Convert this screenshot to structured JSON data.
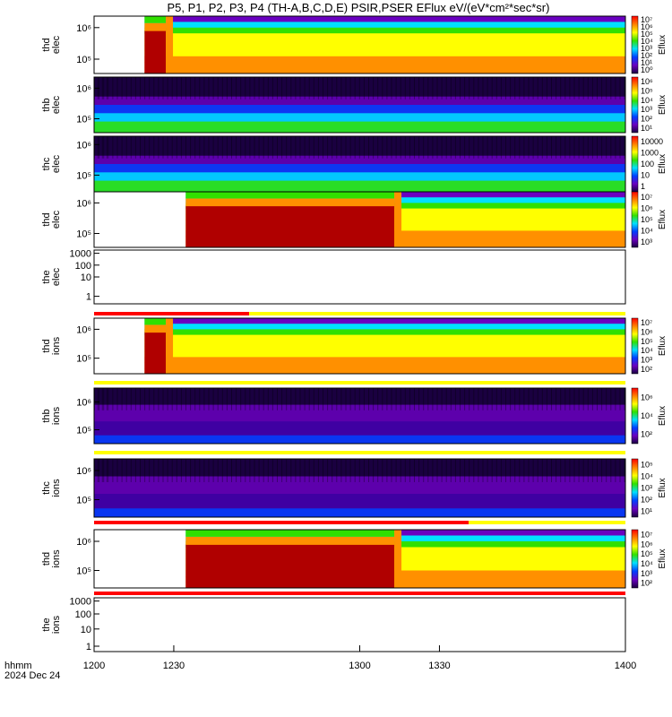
{
  "title": "P5, P1, P2, P3, P4 (TH-A,B,C,D,E) PSIR,PSER EFlux eV/(eV*cm²*sec*sr)",
  "footer": {
    "hhmm": "hhmm",
    "date": "2024 Dec 24"
  },
  "chart_data": {
    "type": "heatmap",
    "x": {
      "label": "hhmm",
      "date": "2024 Dec 24",
      "ticks": [
        "1200",
        "1230",
        "1300",
        "1330",
        "1400"
      ]
    },
    "colorbar_label": "Eflux",
    "panels": [
      {
        "label": [
          "thd",
          "elec"
        ],
        "probe": "thd",
        "species": "elec",
        "kind": "spec",
        "yticks": [
          [
            "10⁶",
            0.2
          ],
          [
            "10⁵",
            0.75
          ]
        ],
        "cticks": [
          "10⁷",
          "10⁶",
          "10⁵",
          "10⁴",
          "10³",
          "10²",
          "10¹",
          "10⁰"
        ]
      },
      {
        "label": [
          "thb",
          "elec"
        ],
        "probe": "thb",
        "species": "elec",
        "kind": "noise",
        "yticks": [
          [
            "10⁶",
            0.2
          ],
          [
            "10⁵",
            0.75
          ]
        ],
        "cticks": [
          "10⁶",
          "10⁵",
          "10⁴",
          "10³",
          "10²",
          "10¹"
        ]
      },
      {
        "label": [
          "thc",
          "elec"
        ],
        "probe": "thc",
        "species": "elec",
        "kind": "noise",
        "yticks": [
          [
            "10⁶",
            0.15
          ],
          [
            "10⁵",
            0.7
          ]
        ],
        "cticks": [
          "10000",
          "1000",
          "100",
          "10",
          "1"
        ]
      },
      {
        "label": [
          "thd",
          "elec"
        ],
        "probe": "thd",
        "species": "elec",
        "kind": "spec",
        "yticks": [
          [
            "10⁶",
            0.2
          ],
          [
            "10⁵",
            0.75
          ]
        ],
        "cticks": [
          "10⁷",
          "10⁶",
          "10⁵",
          "10⁴",
          "10³"
        ]
      },
      {
        "label": [
          "the",
          "elec"
        ],
        "probe": "the",
        "species": "elec",
        "kind": "empty",
        "yticks": [
          [
            "1000",
            0.06
          ],
          [
            "100",
            0.28
          ],
          [
            "10",
            0.5
          ],
          [
            "1",
            0.86
          ]
        ],
        "cticks": []
      },
      {
        "label": [
          "thd",
          "ions"
        ],
        "probe": "thd",
        "species": "ions",
        "kind": "spec",
        "yticks": [
          [
            "10⁶",
            0.2
          ],
          [
            "10⁵",
            0.72
          ]
        ],
        "cticks": [
          "10⁷",
          "10⁶",
          "10⁵",
          "10⁴",
          "10³",
          "10²"
        ]
      },
      {
        "label": [
          "thb",
          "ions"
        ],
        "probe": "thb",
        "species": "ions",
        "kind": "noise",
        "yticks": [
          [
            "10⁶",
            0.25
          ],
          [
            "10⁵",
            0.75
          ]
        ],
        "cticks": [
          "10⁶",
          "10⁴",
          "10²"
        ]
      },
      {
        "label": [
          "thc",
          "ions"
        ],
        "probe": "thc",
        "species": "ions",
        "kind": "noise",
        "yticks": [
          [
            "10⁶",
            0.2
          ],
          [
            "10⁵",
            0.7
          ]
        ],
        "cticks": [
          "10⁵",
          "10⁴",
          "10³",
          "10²",
          "10¹"
        ]
      },
      {
        "label": [
          "thd",
          "ions"
        ],
        "probe": "thd",
        "species": "ions",
        "kind": "spec",
        "yticks": [
          [
            "10⁶",
            0.2
          ],
          [
            "10⁵",
            0.7
          ]
        ],
        "cticks": [
          "10⁷",
          "10⁶",
          "10⁵",
          "10⁴",
          "10³",
          "10²"
        ]
      },
      {
        "label": [
          "the",
          "ions"
        ],
        "probe": "the",
        "species": "ions",
        "kind": "empty",
        "yticks": [
          [
            "1000",
            0.06
          ],
          [
            "100",
            0.3
          ],
          [
            "10",
            0.58
          ],
          [
            "1",
            0.9
          ]
        ],
        "cticks": []
      }
    ]
  },
  "colors": {
    "low": "#1a0040",
    "purple": "#6a00c0",
    "blue": "#0040ff",
    "cyan": "#00e0ff",
    "green": "#30e000",
    "yellow": "#ffff00",
    "orange": "#ff9000",
    "red": "#e00000",
    "darkred": "#b00000",
    "flag_red": "#ff0000",
    "flag_yellow": "#ffff00"
  }
}
